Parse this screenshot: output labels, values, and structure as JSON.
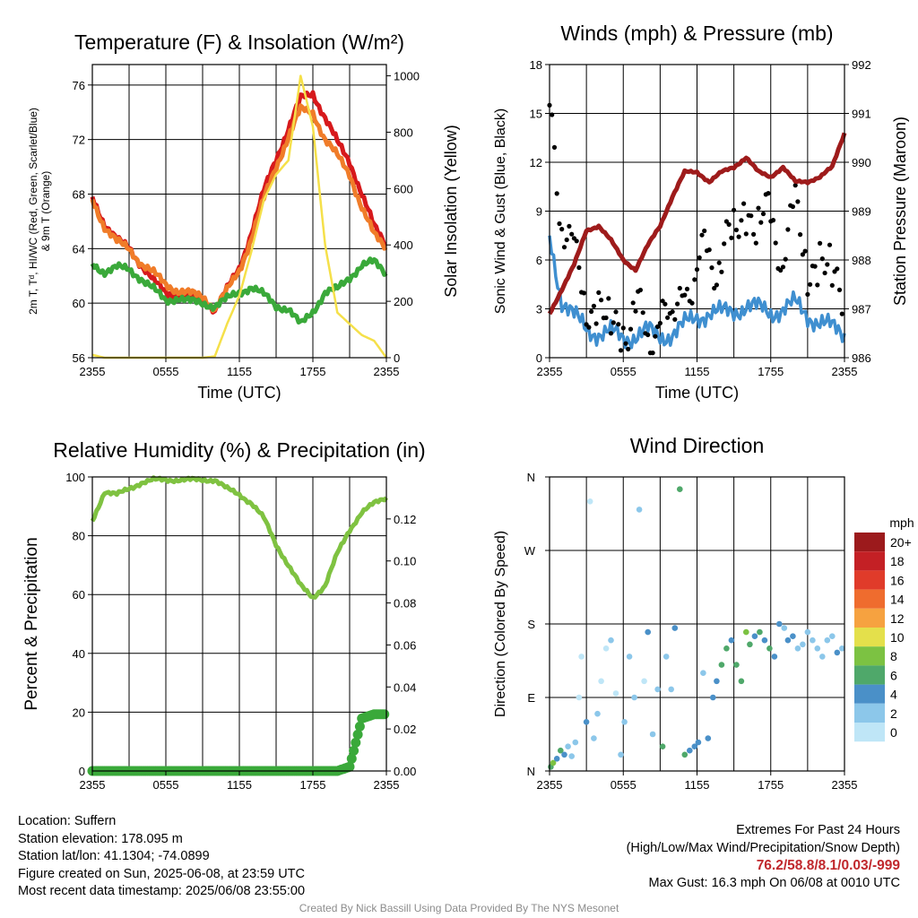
{
  "chart_data": [
    {
      "type": "line",
      "title": "Temperature (F) & Insolation (W/m²)",
      "xlabel": "Time (UTC)",
      "ylabel": "2m T, Tᵈ, HI/WC (Red, Green, Scarlet/Blue) & 9m T (Orange)",
      "ylabel_right": "Solar Insolation (Yellow)",
      "x_ticks": [
        "2355",
        "0555",
        "1155",
        "1755",
        "2355"
      ],
      "ylim": [
        56,
        77.5
      ],
      "y_ticks": [
        56,
        60,
        64,
        68,
        72,
        76
      ],
      "ylim_right": [
        0,
        1040
      ],
      "y_ticks_right": [
        0,
        200,
        400,
        600,
        800,
        1000
      ],
      "x_hours": [
        0,
        1,
        2,
        3,
        4,
        5,
        6,
        7,
        8,
        9,
        10,
        11,
        12,
        13,
        14,
        15,
        16,
        17,
        18,
        19,
        20,
        21,
        22,
        23,
        24
      ],
      "series": [
        {
          "name": "2m T",
          "color": "#d7191c",
          "axis": "left",
          "values": [
            67.8,
            65.8,
            64.6,
            64.1,
            62.8,
            61.6,
            60.8,
            60.6,
            60.4,
            60.3,
            59.5,
            61.0,
            62.6,
            65.2,
            68.2,
            70.6,
            72.8,
            75.0,
            75.4,
            73.6,
            71.8,
            70.4,
            68.0,
            65.6,
            64.3
          ]
        },
        {
          "name": "9m T",
          "color": "#f07c29",
          "axis": "left",
          "values": [
            67.6,
            65.6,
            64.5,
            64.0,
            62.9,
            62.2,
            61.4,
            60.9,
            60.7,
            60.5,
            59.6,
            60.9,
            62.4,
            64.8,
            67.6,
            70.0,
            72.2,
            74.2,
            74.0,
            72.0,
            70.8,
            69.5,
            67.0,
            65.0,
            64.1
          ]
        },
        {
          "name": "Td",
          "color": "#3aa93a",
          "axis": "left",
          "values": [
            62.9,
            62.3,
            62.6,
            62.5,
            61.8,
            61.0,
            60.2,
            60.4,
            60.1,
            60.0,
            59.8,
            60.3,
            60.8,
            61.2,
            60.6,
            59.8,
            59.6,
            58.4,
            59.4,
            60.8,
            61.0,
            61.9,
            62.8,
            63.0,
            62.2
          ]
        },
        {
          "name": "Solar",
          "color": "#f5e04a",
          "axis": "right",
          "values": [
            10,
            0,
            0,
            0,
            0,
            0,
            0,
            0,
            0,
            0,
            5,
            120,
            220,
            380,
            560,
            650,
            700,
            1000,
            820,
            400,
            160,
            120,
            80,
            60,
            0
          ]
        }
      ]
    },
    {
      "type": "line",
      "title": "Winds (mph) & Pressure (mb)",
      "xlabel": "Time (UTC)",
      "ylabel": "Sonic Wind & Gust (Blue, Black)",
      "ylabel_right": "Station Pressure (Maroon)",
      "x_ticks": [
        "2355",
        "0555",
        "1155",
        "1755",
        "2355"
      ],
      "ylim": [
        0,
        18
      ],
      "y_ticks": [
        0,
        3,
        6,
        9,
        12,
        15,
        18
      ],
      "ylim_right": [
        986,
        992
      ],
      "y_ticks_right": [
        986,
        987,
        988,
        989,
        990,
        991,
        992
      ],
      "x_hours": [
        0,
        1,
        2,
        3,
        4,
        5,
        6,
        7,
        8,
        9,
        10,
        11,
        12,
        13,
        14,
        15,
        16,
        17,
        18,
        19,
        20,
        21,
        22,
        23,
        24
      ],
      "series": [
        {
          "name": "Sonic Wind",
          "color": "#3f8fd0",
          "axis": "left",
          "values": [
            7.5,
            3.5,
            2.5,
            1.8,
            1.5,
            1.5,
            1.2,
            1.4,
            1.6,
            1.3,
            1.5,
            2.0,
            2.5,
            2.8,
            2.7,
            2.9,
            3.2,
            3.0,
            2.8,
            3.0,
            3.3,
            2.6,
            2.2,
            1.8,
            1.5
          ]
        },
        {
          "name": "Gust",
          "color": "#000000",
          "axis": "left",
          "values": [
            15.5,
            9.0,
            5.5,
            4.0,
            2.5,
            2.2,
            1.9,
            2.3,
            2.0,
            1.8,
            2.8,
            4.0,
            5.5,
            6.0,
            6.5,
            7.5,
            9.0,
            8.5,
            8.0,
            7.0,
            8.5,
            6.0,
            5.5,
            5.0,
            4.5
          ]
        },
        {
          "name": "Station Pressure",
          "color": "#9e1b1b",
          "axis": "right",
          "values": [
            986.9,
            987.4,
            987.9,
            988.6,
            988.7,
            988.4,
            988.0,
            987.8,
            988.3,
            988.7,
            989.3,
            989.8,
            989.8,
            989.6,
            989.8,
            989.9,
            990.1,
            989.8,
            989.7,
            989.9,
            989.6,
            989.6,
            989.7,
            989.9,
            990.6
          ]
        }
      ]
    },
    {
      "type": "line",
      "title": "Relative Humidity (%) & Precipitation (in)",
      "xlabel": "",
      "ylabel": "Percent & Precipitation",
      "x_ticks": [
        "2355",
        "0555",
        "1155",
        "1755",
        "2355"
      ],
      "ylim": [
        0,
        100
      ],
      "y_ticks": [
        0,
        20,
        40,
        60,
        80,
        100
      ],
      "ylim_right": [
        0,
        0.14
      ],
      "y_ticks_right": [
        "0.00",
        "0.02",
        "0.04",
        "0.06",
        "0.08",
        "0.10",
        "0.12"
      ],
      "x_hours": [
        0,
        1,
        2,
        3,
        4,
        5,
        6,
        7,
        8,
        9,
        10,
        11,
        12,
        13,
        14,
        15,
        16,
        17,
        18,
        19,
        20,
        21,
        22,
        23,
        24
      ],
      "series": [
        {
          "name": "Relative Humidity",
          "color": "#7fc241",
          "axis": "left",
          "values": [
            85,
            95,
            94,
            96,
            98,
            99,
            99,
            99,
            99,
            99,
            99,
            96,
            94,
            91,
            86,
            77,
            70,
            63,
            59,
            63,
            74,
            82,
            88,
            91,
            93
          ]
        },
        {
          "name": "Precipitation",
          "color": "#3aa93a",
          "axis": "right",
          "values": [
            0,
            0,
            0,
            0,
            0,
            0,
            0,
            0,
            0,
            0,
            0,
            0,
            0,
            0,
            0,
            0,
            0,
            0,
            0,
            0,
            0,
            0.002,
            0.025,
            0.027,
            0.027
          ]
        }
      ]
    },
    {
      "type": "scatter",
      "title": "Wind Direction",
      "xlabel": "",
      "ylabel": "Direction (Colored By Speed)",
      "x_ticks": [
        "2355",
        "0555",
        "1155",
        "1755",
        "2355"
      ],
      "y_ticks": [
        "N",
        "E",
        "S",
        "W",
        "N"
      ],
      "ylim": [
        0,
        360
      ],
      "legend_title": "mph",
      "legend_labels": [
        "0",
        "2",
        "4",
        "6",
        "8",
        "10",
        "12",
        "14",
        "16",
        "18",
        "20+"
      ],
      "legend_colors": [
        "#bfe6f7",
        "#8cc7ea",
        "#4a90c8",
        "#4fa86a",
        "#7cc242",
        "#e4e04b",
        "#f6a240",
        "#ef6c2e",
        "#e03b2a",
        "#c42025",
        "#9c1a1c"
      ],
      "speed_colors": [
        "#bfe6f7",
        "#8cc7ea",
        "#4a90c8",
        "#4fa86a"
      ],
      "points_hours": [
        0.1,
        0.3,
        0.6,
        0.9,
        1.2,
        1.5,
        1.8,
        2.1,
        2.4,
        2.6,
        3.0,
        3.3,
        3.6,
        3.9,
        4.2,
        4.6,
        5.0,
        5.4,
        5.8,
        6.1,
        6.5,
        6.9,
        7.3,
        7.7,
        8.0,
        8.4,
        8.8,
        9.2,
        9.5,
        9.9,
        10.2,
        10.6,
        11.0,
        11.4,
        11.8,
        12.1,
        12.5,
        12.9,
        13.3,
        13.6,
        14.0,
        14.4,
        14.8,
        15.2,
        15.6,
        16.0,
        16.3,
        16.7,
        17.1,
        17.5,
        17.9,
        18.3,
        18.7,
        19.1,
        19.4,
        19.8,
        20.2,
        20.6,
        21.0,
        21.4,
        21.8,
        22.2,
        22.6,
        23.0,
        23.4,
        23.8
      ],
      "points_dir": [
        5,
        10,
        15,
        25,
        20,
        30,
        18,
        35,
        90,
        140,
        60,
        330,
        40,
        70,
        110,
        150,
        160,
        95,
        20,
        60,
        140,
        90,
        320,
        110,
        170,
        45,
        100,
        30,
        140,
        100,
        175,
        345,
        20,
        25,
        30,
        35,
        120,
        40,
        90,
        110,
        130,
        150,
        160,
        130,
        110,
        170,
        155,
        165,
        170,
        160,
        150,
        140,
        180,
        175,
        160,
        165,
        150,
        155,
        170,
        160,
        150,
        140,
        160,
        165,
        145,
        150
      ],
      "points_speed": [
        3,
        4,
        2,
        3,
        2,
        1,
        1,
        1,
        0,
        0,
        2,
        0,
        1,
        1,
        0,
        0,
        1,
        0,
        1,
        1,
        1,
        1,
        1,
        0,
        2,
        1,
        1,
        3,
        1,
        1,
        2,
        3,
        3,
        2,
        2,
        2,
        1,
        2,
        2,
        2,
        3,
        3,
        2,
        3,
        3,
        4,
        3,
        2,
        3,
        2,
        3,
        2,
        2,
        1,
        2,
        2,
        1,
        1,
        1,
        1,
        1,
        1,
        1,
        1,
        2,
        1
      ]
    }
  ],
  "info": {
    "location": "Location: Suffern",
    "elevation": "Station elevation: 178.095 m",
    "latlon": "Station lat/lon: 41.1304; -74.0899",
    "created": "Figure created on Sun, 2025-06-08, at 23:59 UTC",
    "recent": "Most recent data timestamp: 2025/06/08 23:55:00",
    "extremes_title": "Extremes For Past 24 Hours",
    "extremes_subtitle": "(High/Low/Max Wind/Precipitation/Snow Depth)",
    "extremes_values": "76.2/58.8/8.1/0.03/-999",
    "max_gust": "Max Gust: 16.3 mph On 06/08 at 0010 UTC",
    "credit": "Created By Nick Bassill Using Data Provided By The NYS Mesonet"
  }
}
